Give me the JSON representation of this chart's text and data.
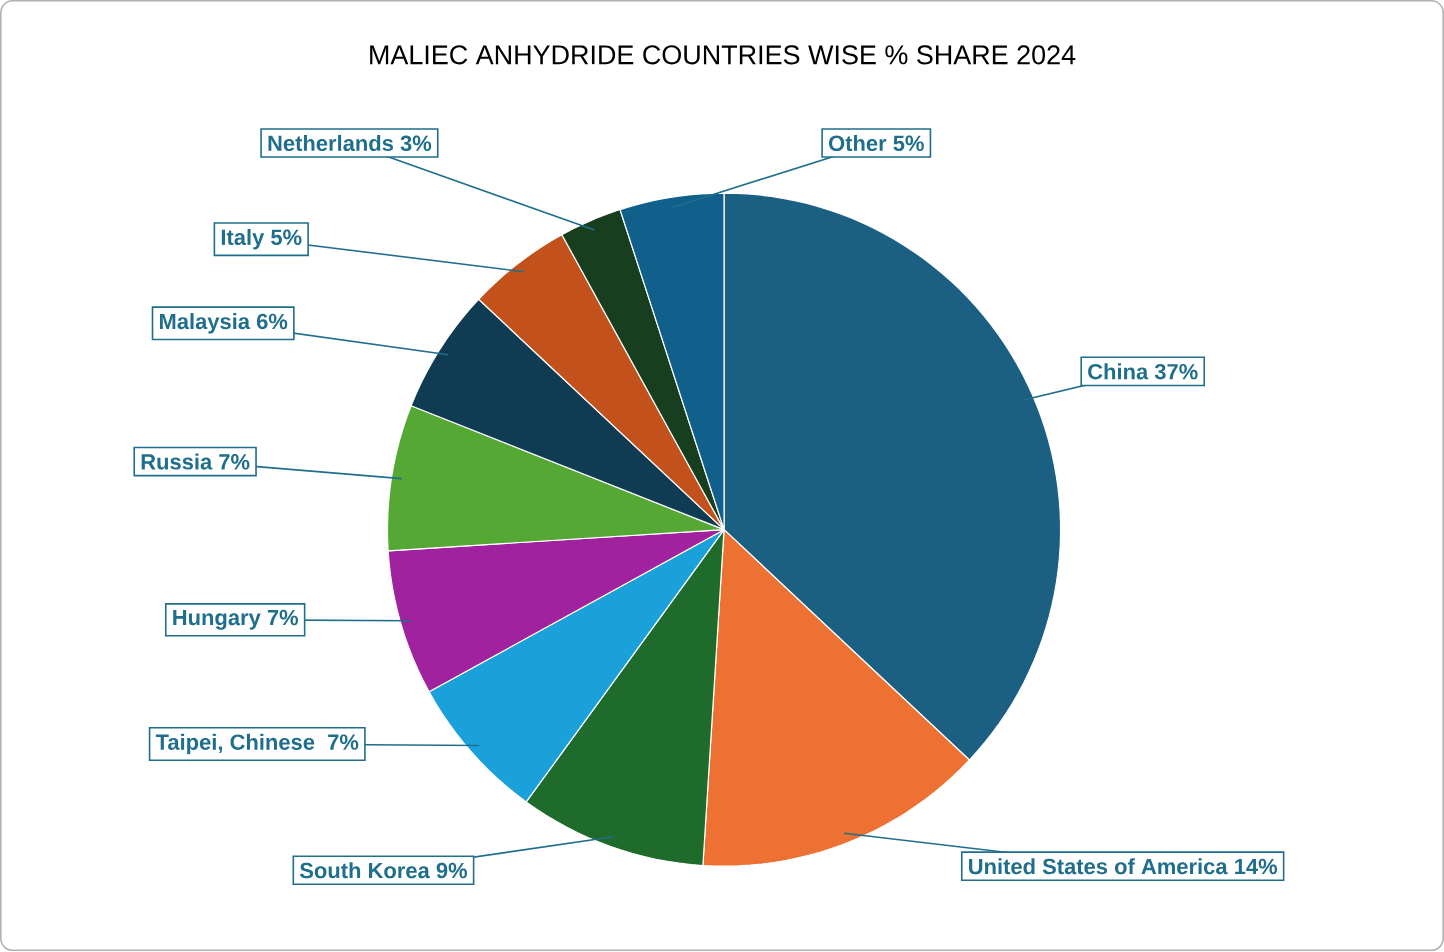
{
  "chart_data": {
    "type": "pie",
    "title": "MALIEC ANHYDRIDE COUNTRIES WISE % SHARE 2024",
    "categories": [
      "China",
      "United States of America",
      "South Korea",
      "Taipei, Chinese ",
      "Hungary",
      "Russia",
      "Malaysia",
      "Italy",
      "Netherlands",
      "Other"
    ],
    "values": [
      37,
      14,
      9,
      7,
      7,
      7,
      6,
      5,
      3,
      5
    ],
    "value_labels": [
      "37%",
      "14%",
      "9%",
      "7%",
      "7%",
      "7%",
      "6%",
      "5%",
      "3%",
      "5%"
    ],
    "colors": [
      "#1b5f82",
      "#ed7132",
      "#1e6b2b",
      "#1aa1d9",
      "#a1229f",
      "#55a833",
      "#103c53",
      "#c2511b",
      "#163e1f",
      "#11608c"
    ]
  }
}
